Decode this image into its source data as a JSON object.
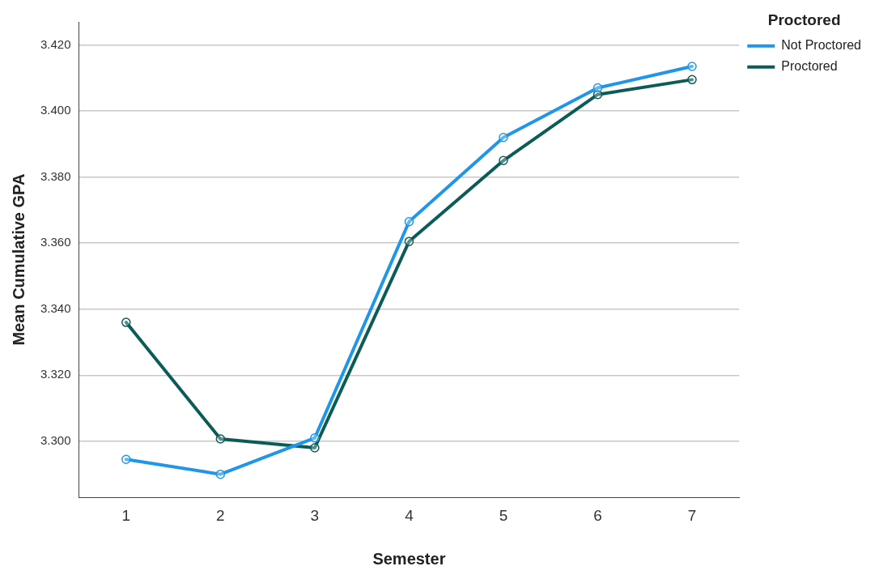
{
  "chart_data": {
    "type": "line",
    "xlabel": "Semester",
    "ylabel": "Mean Cumulative GPA",
    "legend_title": "Proctored",
    "categories": [
      "1",
      "2",
      "3",
      "4",
      "5",
      "6",
      "7"
    ],
    "series": [
      {
        "name": "Not Proctored",
        "color": "#2196e8",
        "values": [
          3.2945,
          3.29,
          3.301,
          3.3665,
          3.392,
          3.407,
          3.4135
        ]
      },
      {
        "name": "Proctored",
        "color": "#0b5c58",
        "values": [
          3.336,
          3.3007,
          3.298,
          3.3605,
          3.385,
          3.405,
          3.4095
        ]
      }
    ],
    "ylim": [
      3.283,
      3.427
    ],
    "yticks": [
      {
        "value": 3.3,
        "label": "3.300"
      },
      {
        "value": 3.32,
        "label": "3.320"
      },
      {
        "value": 3.34,
        "label": "3.340"
      },
      {
        "value": 3.36,
        "label": "3.360"
      },
      {
        "value": 3.38,
        "label": "3.380"
      },
      {
        "value": 3.4,
        "label": "3.400"
      },
      {
        "value": 3.42,
        "label": "3.420"
      }
    ],
    "grid": "y",
    "legend": "top right",
    "marker": "circle",
    "line_style": "solid"
  }
}
